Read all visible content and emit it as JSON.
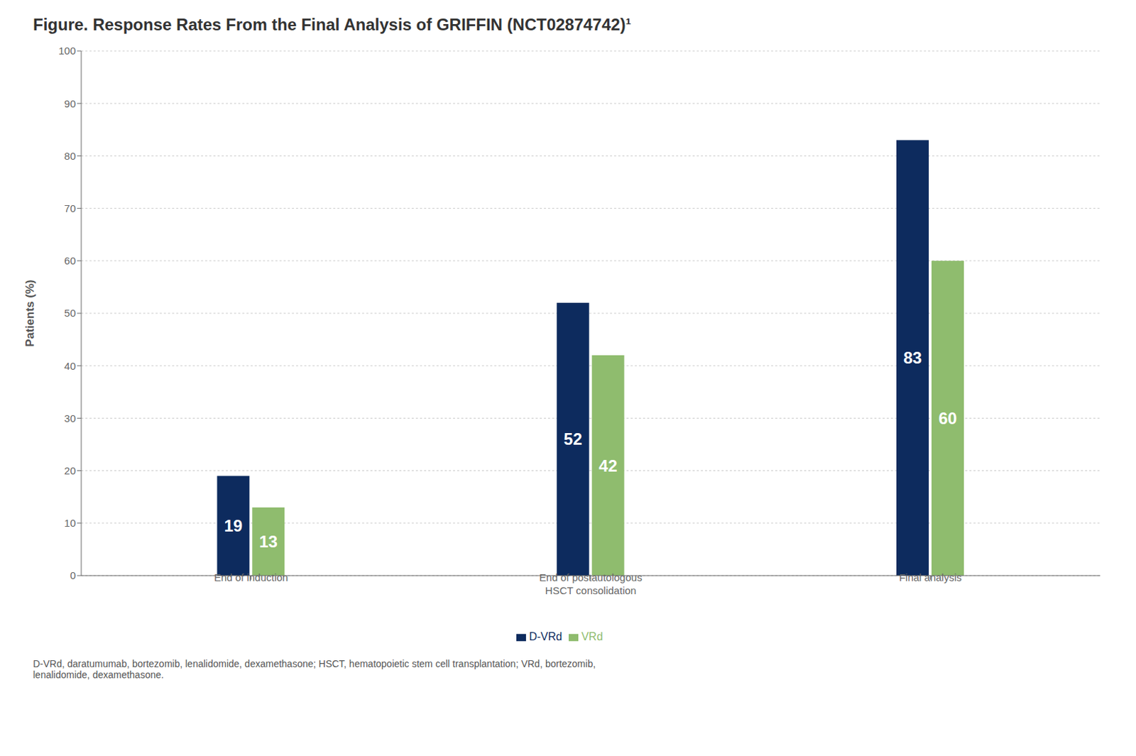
{
  "chart_data": {
    "type": "bar",
    "title": "Figure. Response Rates From the Final Analysis of GRIFFIN (NCT02874742)¹",
    "categories": [
      "End of induction",
      "End of postautologous\nHSCT consolidation",
      "Final analysis"
    ],
    "series": [
      {
        "name": "D-VRd",
        "color": "#0d2b5e",
        "values": [
          19,
          52,
          83
        ]
      },
      {
        "name": "VRd",
        "color": "#8fbc6e",
        "values": [
          13,
          42,
          60
        ]
      }
    ],
    "y_label": "Patients (%)",
    "ylim": [
      0,
      100
    ],
    "yticks": [
      0,
      10,
      20,
      30,
      40,
      50,
      60,
      70,
      80,
      90,
      100
    ],
    "grid": true,
    "legend": "bottom",
    "data_labels": true,
    "annotations": [
      "D-VRd, daratumumab, bortezomib, lenalidomide, dexamethasone; HSCT, hematopoietic stem cell transplantation; VRd, bortezomib,\nlenalidomide, dexamethasone."
    ]
  }
}
